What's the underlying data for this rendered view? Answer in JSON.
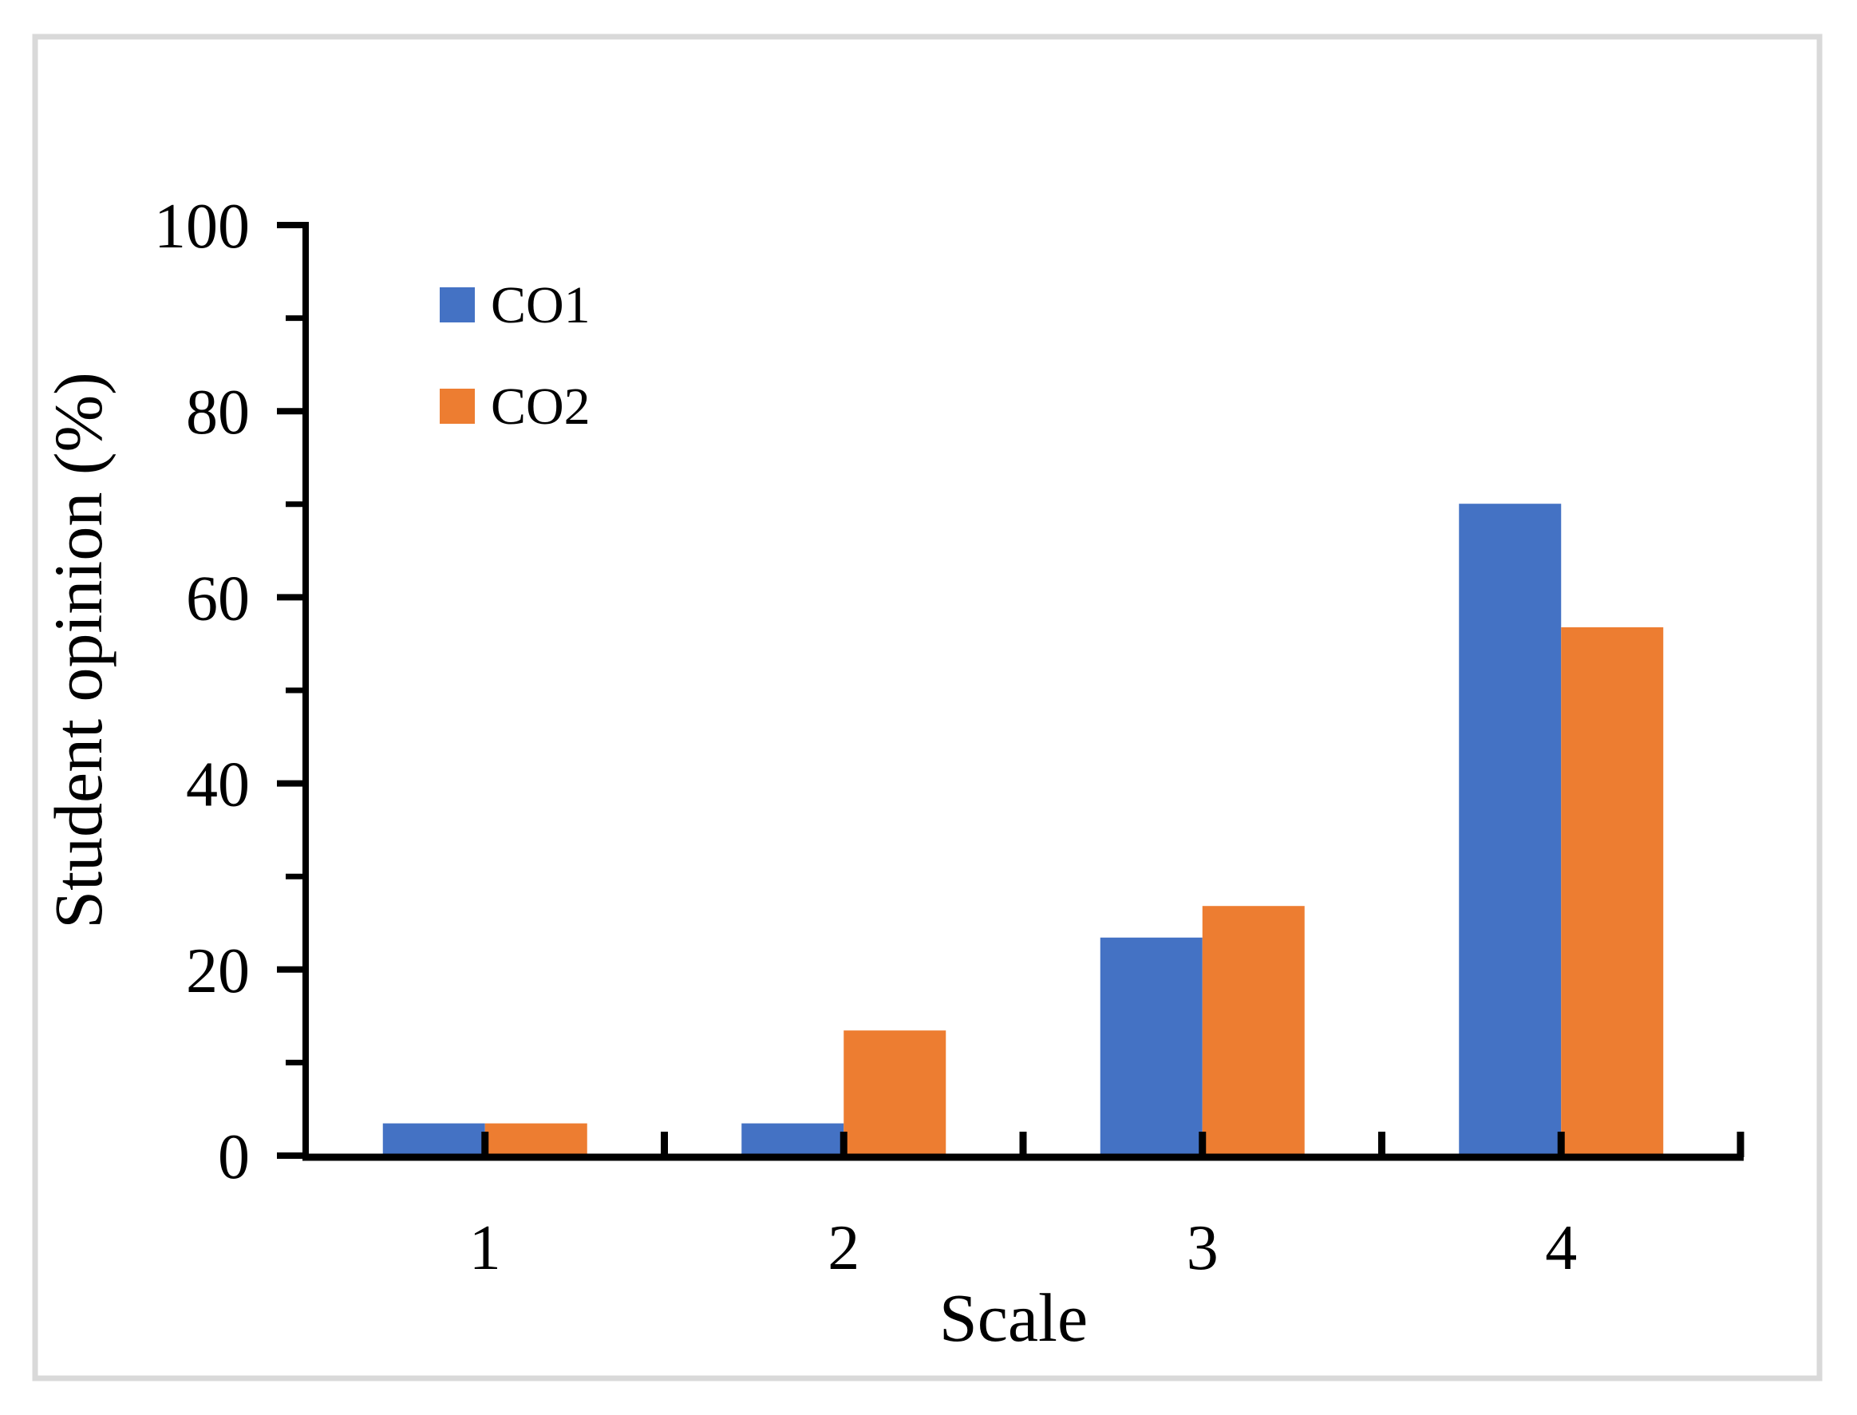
{
  "chart_data": {
    "type": "bar",
    "title": "",
    "categories": [
      "1",
      "2",
      "3",
      "4"
    ],
    "series": [
      {
        "name": "CO1",
        "color": "#4472C4",
        "values": [
          3.3,
          3.3,
          23.3,
          70.0
        ]
      },
      {
        "name": "CO2",
        "color": "#ED7D31",
        "values": [
          3.3,
          13.3,
          26.7,
          56.7
        ]
      }
    ],
    "xlabel": "Scale",
    "ylabel": "Student opinion (%)",
    "ylim": [
      0,
      100
    ],
    "yticks": [
      0,
      20,
      40,
      60,
      80,
      100
    ],
    "minor_ytick_step": 10,
    "legend_position": "upper-left-inside",
    "grid": false,
    "colors": {
      "axis": "#000000",
      "text": "#000000",
      "frame_border": "#D9D9D9",
      "background": "#FFFFFF"
    }
  }
}
